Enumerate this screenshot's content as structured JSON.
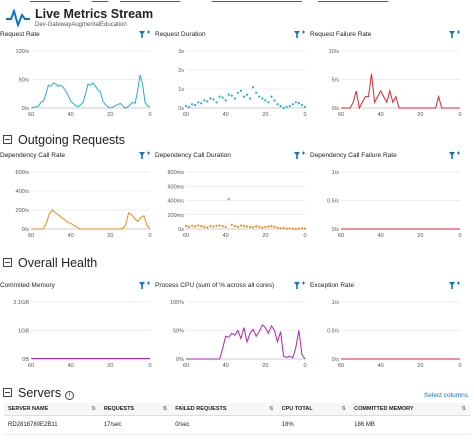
{
  "header": {
    "title": "Live Metrics Stream",
    "subtitle": "Dev-GatewayAugmentalEducation"
  },
  "sections": {
    "outgoing": "Outgoing Requests",
    "health": "Overall Health",
    "servers": "Servers"
  },
  "panels": [
    {
      "title": "Request Rate",
      "type": "line",
      "color": "#1fb0d8",
      "yticks": [
        "100/s",
        "50/s",
        "0/s"
      ],
      "xticks": [
        "60",
        "40",
        "20",
        "0"
      ],
      "values": [
        0,
        1,
        2,
        3,
        10,
        12,
        25,
        40,
        38,
        44,
        42,
        38,
        40,
        36,
        30,
        22,
        12,
        8,
        4,
        2,
        6,
        10,
        25,
        42,
        40,
        44,
        38,
        32,
        28,
        12,
        6,
        2,
        0,
        2,
        4,
        6,
        8,
        4,
        0,
        2,
        6,
        10,
        8,
        30,
        58,
        42,
        10,
        4,
        2
      ]
    },
    {
      "title": "Request Duration",
      "type": "scatter",
      "color": "#1fb0d8",
      "yticks": [
        "3s",
        "2s",
        "1s",
        "0s"
      ],
      "xticks": [
        "60",
        "40",
        "20",
        "0"
      ],
      "values": [
        0.1,
        0.05,
        0.2,
        0.15,
        0.3,
        0.25,
        0.4,
        0.35,
        0.5,
        0.45,
        0.3,
        0.6,
        0.55,
        0.4,
        0.7,
        0.65,
        0.5,
        0.8,
        0.9,
        0.6,
        0.7,
        0.5,
        1.1,
        0.8,
        0.6,
        0.5,
        0.4,
        0.3,
        0.6,
        0.4,
        0.2,
        0.1,
        0.0,
        0.05,
        0.1,
        0.2,
        0.3,
        0.25,
        0.15,
        0.05
      ]
    },
    {
      "title": "Request Failure Rate",
      "type": "line",
      "color": "#e0212d",
      "yticks": [
        "10/s",
        "5/s",
        "0/s"
      ],
      "xticks": [
        "60",
        "40",
        "20",
        "0"
      ],
      "values": [
        0,
        0,
        0,
        0,
        1,
        3,
        0,
        1,
        2,
        2,
        6,
        1,
        2,
        3,
        2,
        1,
        3,
        1,
        2,
        0,
        0,
        0,
        0,
        0,
        0,
        0,
        0,
        0,
        0,
        0,
        0,
        0,
        2,
        0,
        0,
        0,
        0,
        0,
        0,
        0
      ]
    },
    {
      "title": "Dependency Call Rate",
      "type": "line",
      "color": "#ef8a1f",
      "yticks": [
        "600/s",
        "400/s",
        "200/s",
        "0/s"
      ],
      "xticks": [
        "60",
        "40",
        "20",
        "0"
      ],
      "values": [
        0,
        0,
        0,
        0,
        2,
        60,
        160,
        200,
        170,
        150,
        120,
        100,
        70,
        60,
        40,
        20,
        0,
        0,
        0,
        0,
        0,
        0,
        0,
        0,
        0,
        0,
        0,
        0,
        0,
        0,
        5,
        40,
        170,
        150,
        110,
        80,
        120,
        140,
        40,
        0
      ]
    },
    {
      "title": "Dependency Call Duration",
      "type": "scatter",
      "color": "#ef8a1f",
      "yticks": [
        "800ms",
        "600ms",
        "400ms",
        "200ms",
        "0s"
      ],
      "xticks": [
        "60",
        "40",
        "20",
        "0"
      ],
      "values": [
        40,
        30,
        45,
        35,
        50,
        40,
        30,
        20,
        40,
        35,
        45,
        50,
        40,
        30,
        420,
        60,
        40,
        30,
        50,
        40,
        35,
        30,
        25,
        40,
        30,
        20,
        30,
        35,
        40,
        30,
        20,
        10,
        15,
        5,
        10,
        5,
        0,
        5,
        10,
        5
      ]
    },
    {
      "title": "Dependency Call Failure Rate",
      "type": "line",
      "color": "#e0212d",
      "yticks": [
        "1/s",
        "0.5/s",
        "0/s"
      ],
      "xticks": [
        "60",
        "40",
        "20",
        "0"
      ],
      "values": [
        0,
        0,
        0,
        0,
        0,
        0,
        0,
        0,
        0,
        0,
        0,
        0,
        0,
        0,
        0,
        0,
        0,
        0,
        0,
        0,
        0,
        0,
        0,
        0,
        0,
        0,
        0,
        0,
        0,
        0,
        0,
        0,
        0,
        0,
        0,
        0,
        0,
        0,
        0,
        0
      ]
    },
    {
      "title": "Commited Memory",
      "type": "line",
      "color": "#b223b8",
      "yticks": [
        "2.1GB",
        "1GB",
        "0B"
      ],
      "xticks": [
        "60",
        "40",
        "20",
        "0"
      ],
      "values": [
        0.02,
        0.02,
        0.02,
        0.02,
        0.02,
        0.02,
        0.02,
        0.02,
        0.02,
        0.02,
        0.02,
        0.02,
        0.02,
        0.02,
        0.02,
        0.02,
        0.02,
        0.02,
        0.02,
        0.02,
        0.02,
        0.02,
        0.02,
        0.02,
        0.02,
        0.02,
        0.02,
        0.02,
        0.02,
        0.02,
        0.02,
        0.02,
        0.02,
        0.02,
        0.02,
        0.02,
        0.02,
        0.02,
        0.02,
        0.02
      ]
    },
    {
      "title": "Process CPU (sum of % across all cores)",
      "type": "line",
      "color": "#b223b8",
      "yticks": [
        "100%",
        "50%",
        "0%"
      ],
      "xticks": [
        "60",
        "40",
        "20",
        "0"
      ],
      "values": [
        0,
        0,
        0,
        0,
        0,
        0,
        0,
        0,
        0,
        0,
        0,
        0,
        18,
        40,
        38,
        45,
        42,
        50,
        36,
        55,
        30,
        45,
        52,
        40,
        48,
        60,
        55,
        45,
        58,
        50,
        30,
        48,
        5,
        3,
        5,
        2,
        20,
        50,
        8,
        0
      ]
    },
    {
      "title": "Exception Rate",
      "type": "line",
      "color": "#e0212d",
      "yticks": [
        "1/s",
        "0.5/s",
        "0/s"
      ],
      "xticks": [
        "60",
        "40",
        "20",
        "0"
      ],
      "values": [
        0,
        0,
        0,
        0,
        0,
        0,
        0,
        0,
        0,
        0,
        0,
        0,
        0,
        0,
        0,
        0,
        0,
        0,
        0,
        0,
        0,
        0,
        0,
        0,
        0,
        0,
        0,
        0,
        0,
        0,
        0,
        0,
        0,
        0,
        0,
        0,
        0,
        0,
        0,
        0
      ]
    }
  ],
  "panel_ranges": [
    [
      0,
      100
    ],
    [
      0,
      3
    ],
    [
      0,
      10
    ],
    [
      0,
      600
    ],
    [
      0,
      800
    ],
    [
      0,
      1
    ],
    [
      0,
      2.1
    ],
    [
      0,
      100
    ],
    [
      0,
      1
    ]
  ],
  "servers": {
    "select_columns": "Select columns",
    "columns": [
      "SERVER NAME",
      "REQUESTS",
      "FAILED REQUESTS",
      "CPU TOTAL",
      "COMMITTED MEMORY"
    ],
    "rows": [
      [
        "RD2818780E2B11",
        "17/sec",
        "0/sec",
        "18%",
        "186 MB"
      ]
    ]
  }
}
